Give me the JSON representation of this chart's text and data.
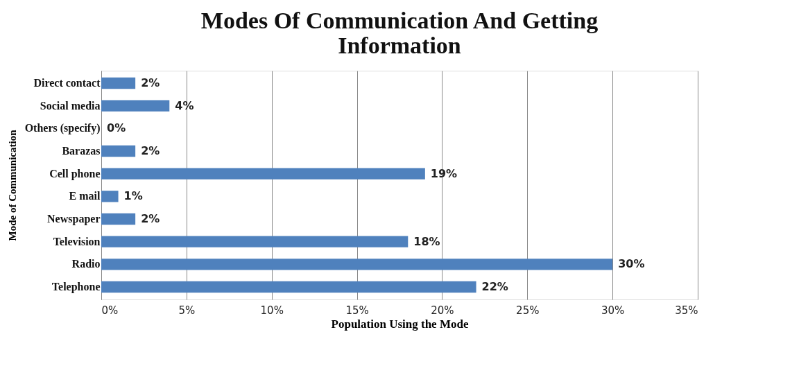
{
  "chart_data": {
    "type": "bar",
    "orientation": "horizontal",
    "title": "Modes Of Communication And Getting Information",
    "xlabel": "Population Using the Mode",
    "ylabel": "Mode of Communication",
    "categories": [
      "Direct contact",
      "Social media",
      "Others (specify)",
      "Barazas",
      "Cell phone",
      "E mail",
      "Newspaper",
      "Television",
      "Radio",
      "Telephone"
    ],
    "values": [
      2,
      4,
      0,
      2,
      19,
      1,
      2,
      18,
      30,
      22
    ],
    "color": "#4f81bd",
    "value_labels": [
      "2%",
      "4%",
      "0%",
      "2%",
      "19%",
      "1%",
      "2%",
      "18%",
      "30%",
      "22%"
    ],
    "xlim": [
      0,
      35
    ],
    "xticks": [
      {
        "value": 0,
        "label": "0%"
      },
      {
        "value": 5,
        "label": "5%"
      },
      {
        "value": 10,
        "label": "10%"
      },
      {
        "value": 15,
        "label": "15%"
      },
      {
        "value": 20,
        "label": "20%"
      },
      {
        "value": 25,
        "label": "25%"
      },
      {
        "value": 30,
        "label": "30%"
      },
      {
        "value": 35,
        "label": "35%"
      }
    ],
    "grid": "x",
    "legend": false
  }
}
